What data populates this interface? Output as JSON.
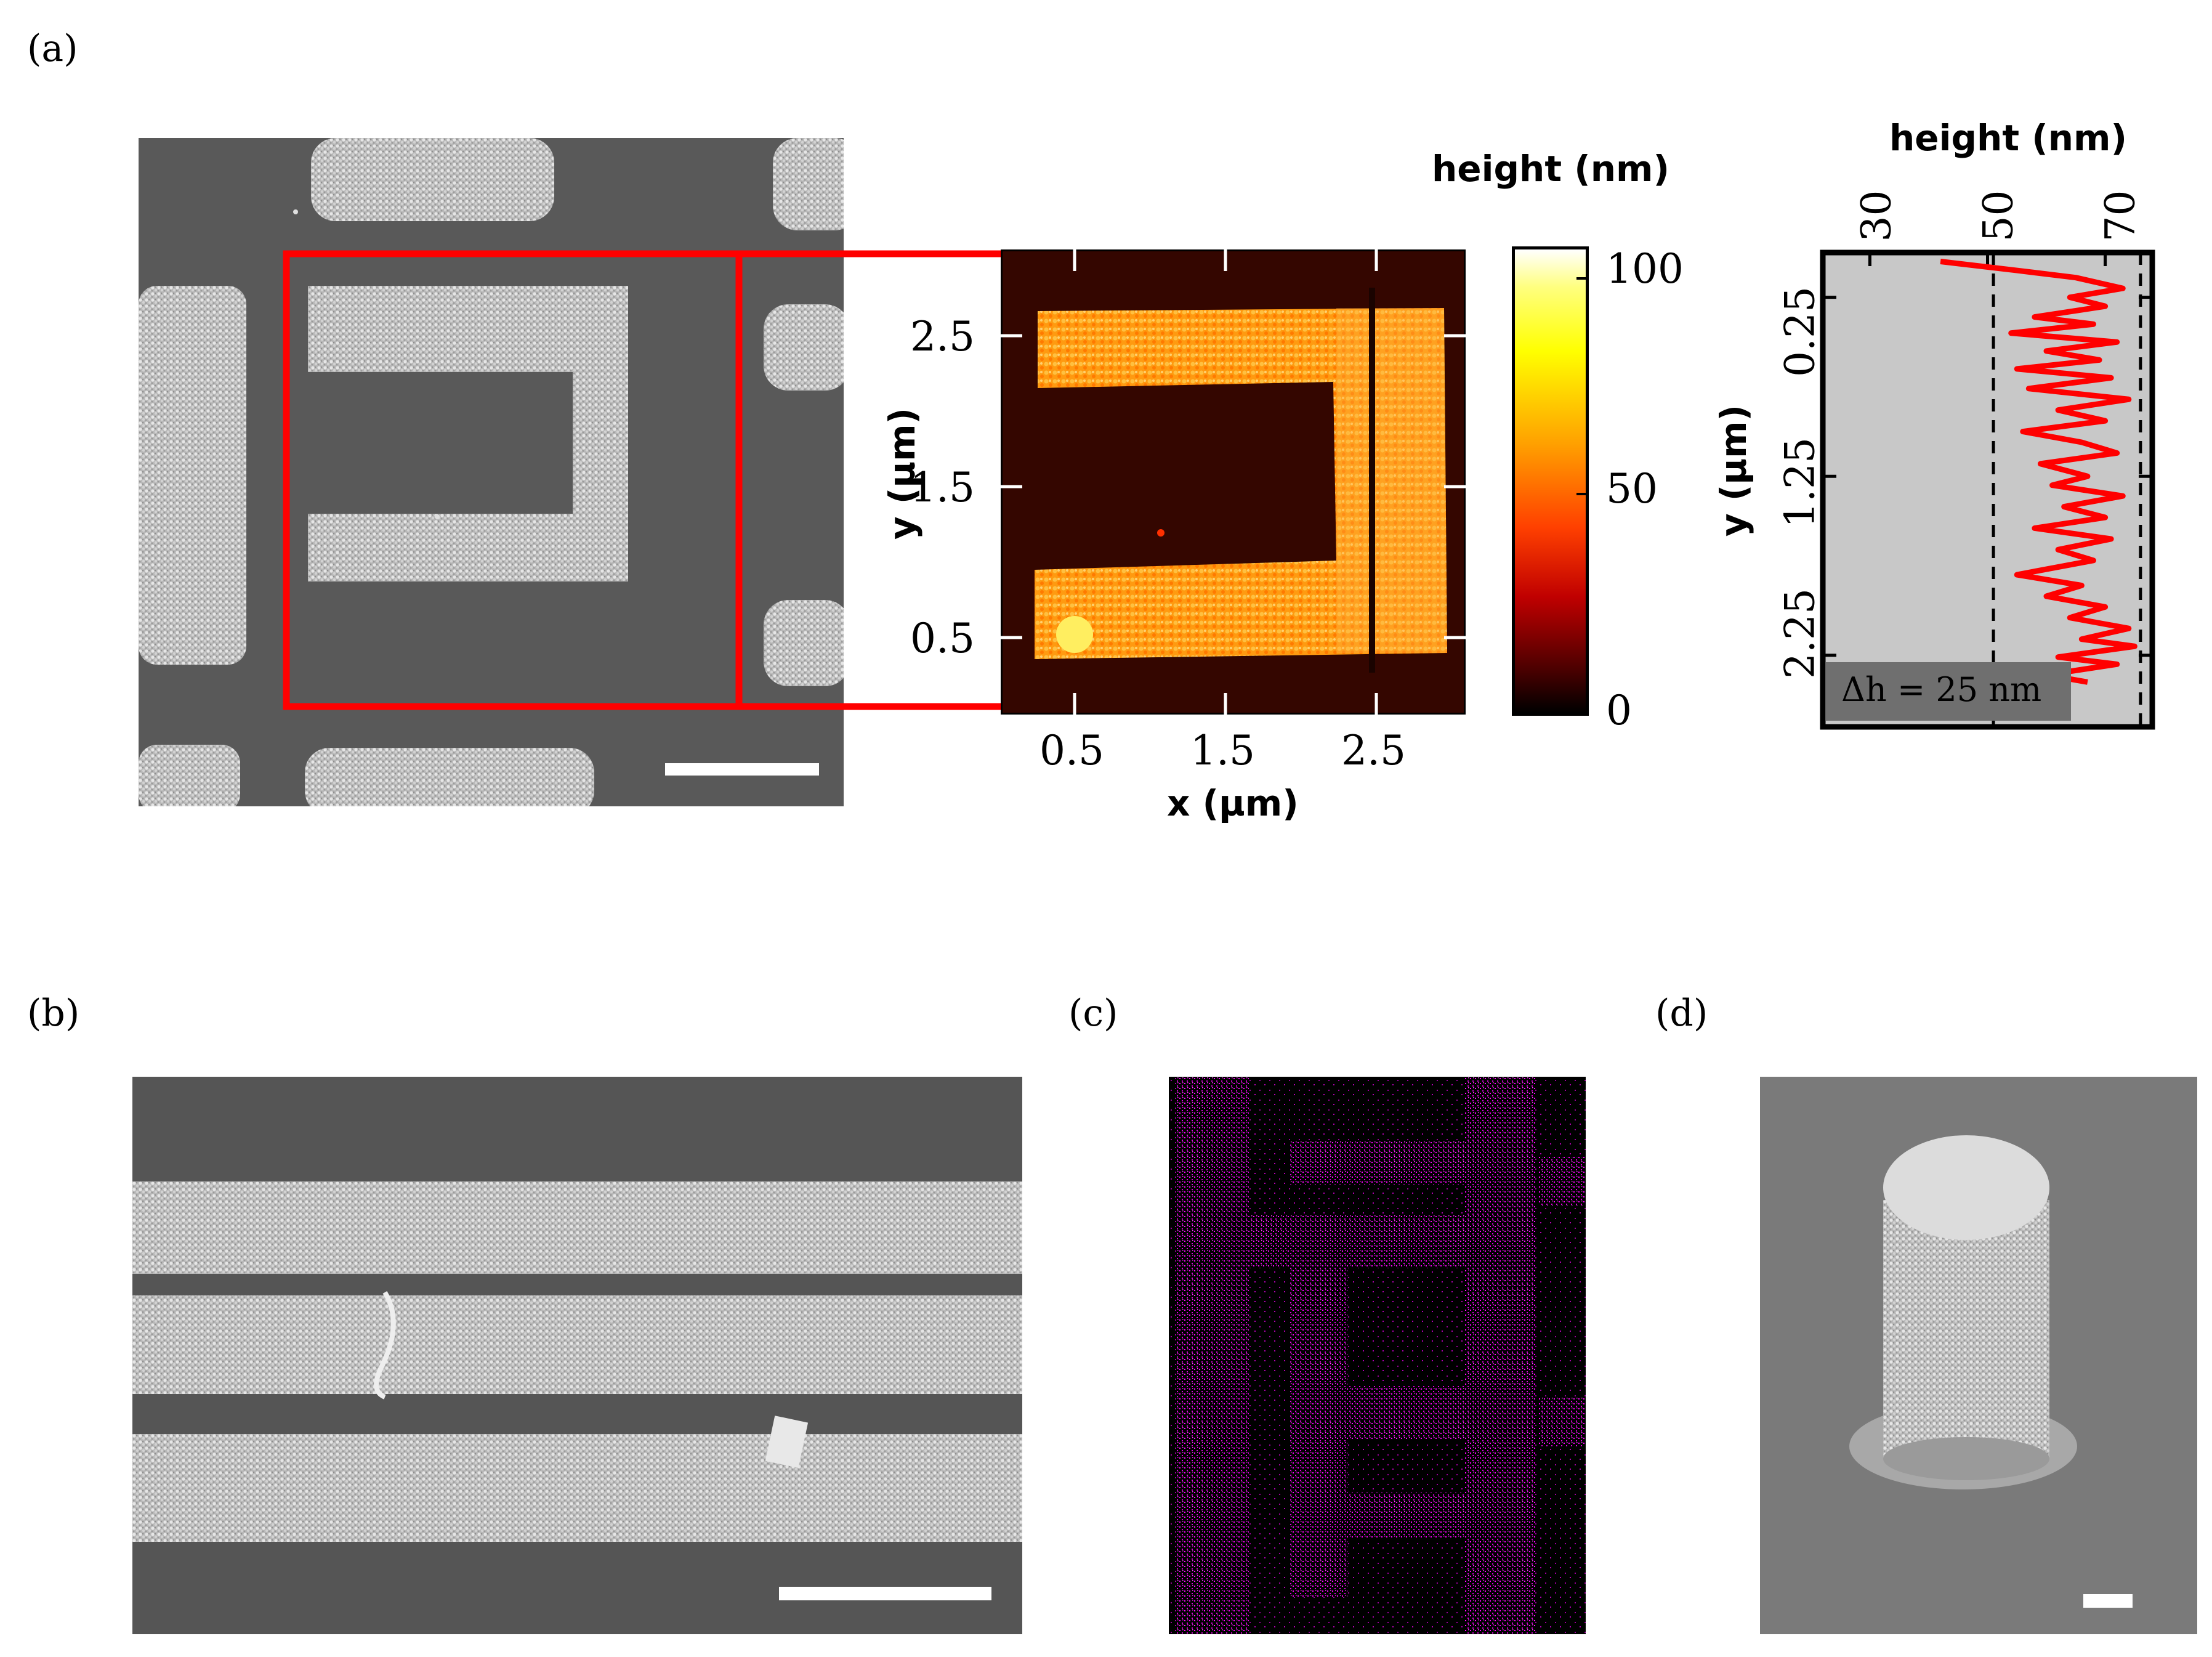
{
  "panels": {
    "a": "(a)",
    "b": "(b)",
    "c": "(c)",
    "d": "(d)"
  },
  "afm_map": {
    "colorbar_title": "height (nm)",
    "colorbar_ticks": [
      "100",
      "50",
      "0"
    ],
    "xlabel": "x (µm)",
    "ylabel": "y (µm)",
    "x_ticks": [
      "0.5",
      "1.5",
      "2.5"
    ],
    "y_ticks": [
      "2.5",
      "1.5",
      "0.5"
    ]
  },
  "chart_data": {
    "type": "line",
    "title": "",
    "xlabel": "height (nm)",
    "ylabel": "y (µm)",
    "x_ticks": [
      "30",
      "50",
      "70"
    ],
    "y_ticks": [
      "0.25",
      "1.25",
      "2.25"
    ],
    "xlim": [
      22,
      78
    ],
    "ylim": [
      0.0,
      2.65
    ],
    "annotation": "Δh = 25 nm",
    "reference_lines_x": [
      51,
      76
    ],
    "series": [
      {
        "color": "#ff0000",
        "points": [
          [
            42,
            0.05
          ],
          [
            55,
            0.1
          ],
          [
            65,
            0.14
          ],
          [
            73,
            0.2
          ],
          [
            64,
            0.25
          ],
          [
            70,
            0.3
          ],
          [
            58,
            0.36
          ],
          [
            68,
            0.4
          ],
          [
            54,
            0.45
          ],
          [
            72,
            0.5
          ],
          [
            60,
            0.55
          ],
          [
            69,
            0.6
          ],
          [
            55,
            0.65
          ],
          [
            71,
            0.7
          ],
          [
            57,
            0.76
          ],
          [
            74,
            0.82
          ],
          [
            62,
            0.88
          ],
          [
            70,
            0.94
          ],
          [
            56,
            1.0
          ],
          [
            66,
            1.06
          ],
          [
            72,
            1.12
          ],
          [
            59,
            1.18
          ],
          [
            67,
            1.25
          ],
          [
            61,
            1.3
          ],
          [
            73,
            1.36
          ],
          [
            63,
            1.42
          ],
          [
            70,
            1.48
          ],
          [
            58,
            1.54
          ],
          [
            71,
            1.6
          ],
          [
            62,
            1.66
          ],
          [
            68,
            1.72
          ],
          [
            55,
            1.8
          ],
          [
            66,
            1.86
          ],
          [
            60,
            1.92
          ],
          [
            70,
            1.98
          ],
          [
            64,
            2.04
          ],
          [
            74,
            2.1
          ],
          [
            66,
            2.16
          ],
          [
            75,
            2.2
          ],
          [
            62,
            2.26
          ],
          [
            72,
            2.3
          ],
          [
            60,
            2.36
          ],
          [
            67,
            2.4
          ]
        ]
      }
    ]
  }
}
